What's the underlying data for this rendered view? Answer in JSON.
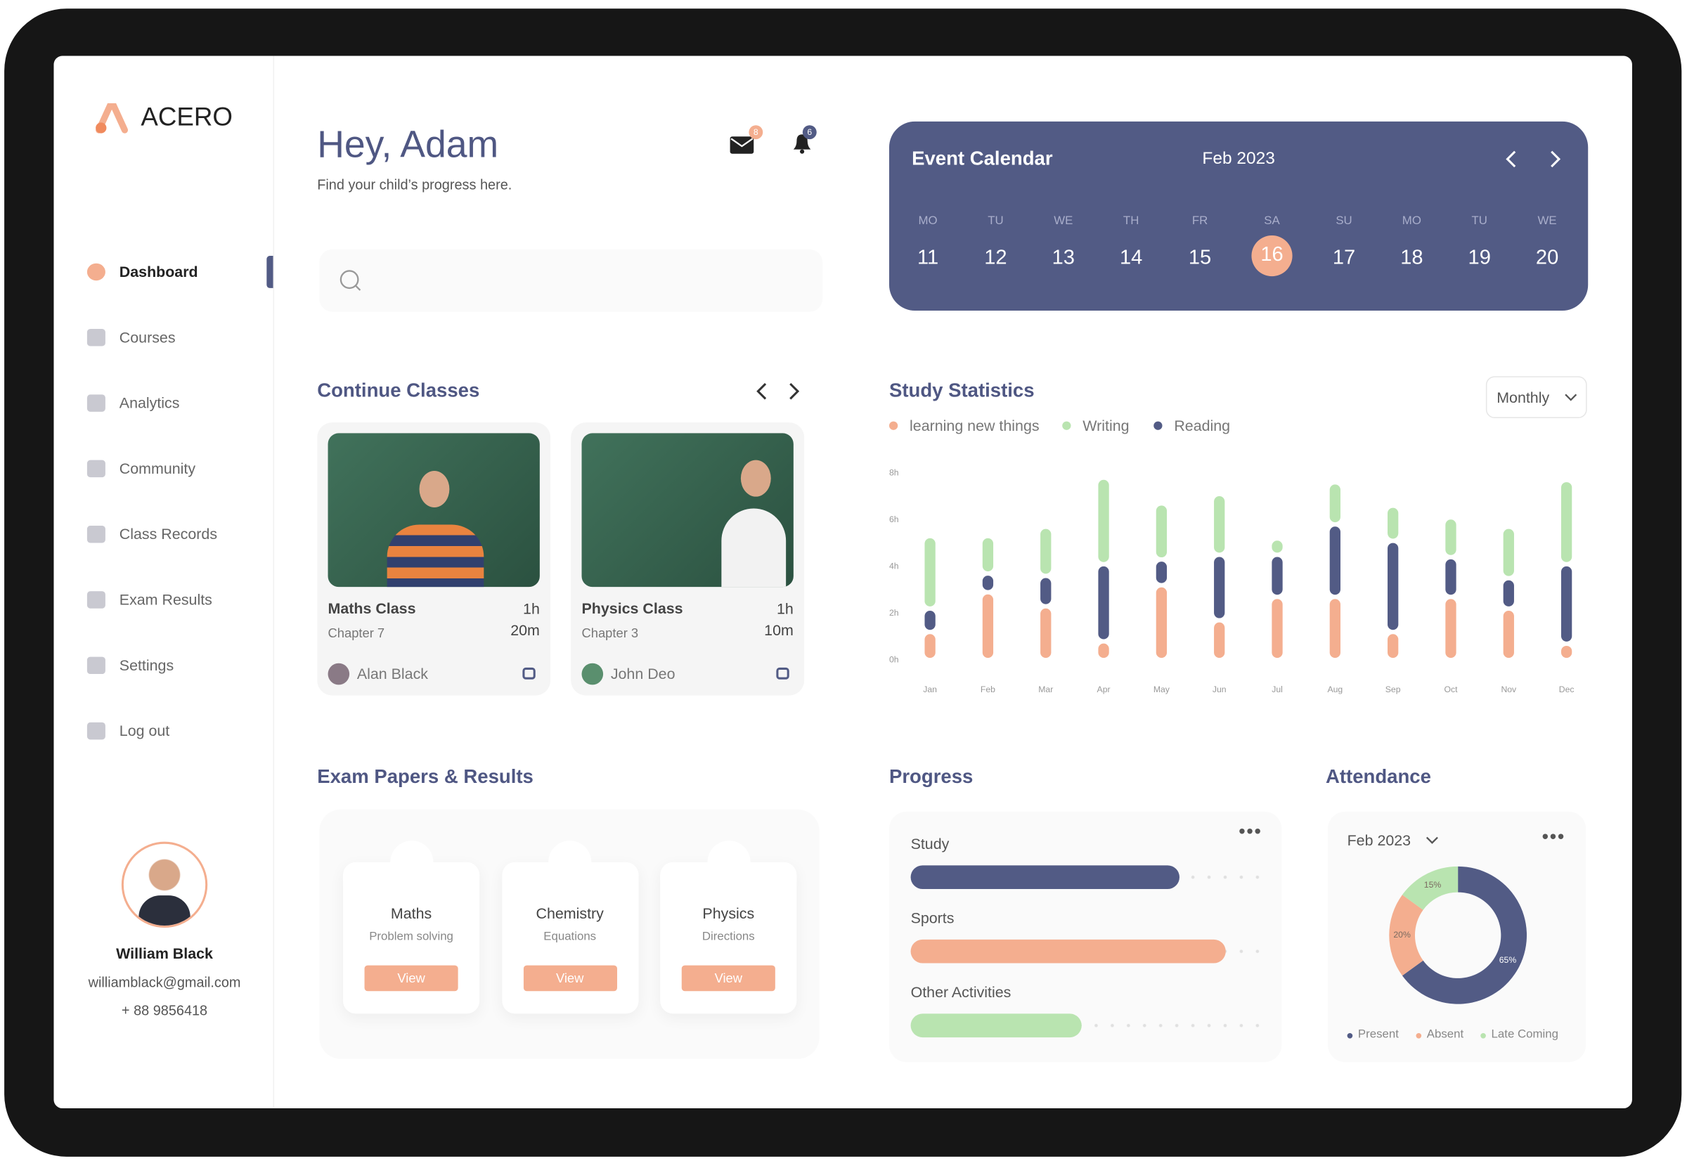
{
  "brand": "ACERO",
  "nav": [
    "Dashboard",
    "Courses",
    "Analytics",
    "Community",
    "Class Records",
    "Exam Results",
    "Settings",
    "Log out"
  ],
  "profile": {
    "name": "William Black",
    "email": "williamblack@gmail.com",
    "phone": "+ 88 9856418"
  },
  "header": {
    "greeting": "Hey, Adam",
    "subtitle": "Find your child’s progress here.",
    "mail_count": 8,
    "notification_count": 6
  },
  "calendar": {
    "title": "Event Calendar",
    "month": "Feb 2023",
    "days": [
      {
        "weekday": "MO",
        "date": 11
      },
      {
        "weekday": "TU",
        "date": 12
      },
      {
        "weekday": "WE",
        "date": 13
      },
      {
        "weekday": "TH",
        "date": 14
      },
      {
        "weekday": "FR",
        "date": 15
      },
      {
        "weekday": "SA",
        "date": 16,
        "selected": true
      },
      {
        "weekday": "SU",
        "date": 17
      },
      {
        "weekday": "MO",
        "date": 18
      },
      {
        "weekday": "TU",
        "date": 19
      },
      {
        "weekday": "WE",
        "date": 20
      }
    ]
  },
  "continue_classes": {
    "title": "Continue Classes",
    "cards": [
      {
        "name": "Maths Class",
        "chapter": "Chapter 7",
        "duration": "1h 20m",
        "teacher": "Alan Black"
      },
      {
        "name": "Physics Class",
        "chapter": "Chapter 3",
        "duration": "1h 10m",
        "teacher": "John Deo"
      }
    ]
  },
  "exam_papers": {
    "title": "Exam Papers & Results",
    "cards": [
      {
        "subject": "Maths",
        "topic": "Problem solving",
        "button": "View"
      },
      {
        "subject": "Chemistry",
        "topic": "Equations",
        "button": "View"
      },
      {
        "subject": "Physics",
        "topic": "Directions",
        "button": "View"
      }
    ]
  },
  "progress": {
    "title": "Progress",
    "items": [
      {
        "label": "Study",
        "value": 77,
        "color": "#525b85"
      },
      {
        "label": "Sports",
        "value": 90,
        "color": "#f4ae8f"
      },
      {
        "label": "Other Activities",
        "value": 49,
        "color": "#b9e4b0"
      }
    ]
  },
  "chart_data": [
    {
      "type": "bar",
      "stacked": true,
      "title": "Study Statistics",
      "period": "Monthly",
      "categories": [
        "Jan",
        "Feb",
        "Mar",
        "Apr",
        "May",
        "Jun",
        "Jul",
        "Aug",
        "Sep",
        "Oct",
        "Nov",
        "Dec"
      ],
      "series": [
        {
          "name": "learning new things",
          "color": "#f4ae8f",
          "values": [
            1.2,
            2.9,
            2.3,
            0.8,
            3.2,
            1.7,
            2.7,
            2.7,
            1.2,
            2.7,
            2.2,
            0.7
          ]
        },
        {
          "name": "Writing",
          "color": "#b9e4b0",
          "values": [
            3.1,
            1.6,
            2.1,
            3.7,
            2.4,
            2.6,
            0.7,
            1.8,
            1.5,
            1.7,
            2.2,
            3.6
          ]
        },
        {
          "name": "Reading",
          "color": "#525b85",
          "values": [
            1.0,
            0.8,
            1.3,
            3.3,
            1.1,
            2.8,
            1.8,
            3.1,
            3.9,
            1.7,
            1.3,
            3.4
          ]
        }
      ],
      "ylim": [
        0,
        8
      ],
      "yticks": [
        {
          "value": 0,
          "label": "0h"
        },
        {
          "value": 2,
          "label": "2h"
        },
        {
          "value": 4,
          "label": "4h"
        },
        {
          "value": 6,
          "label": "6h"
        },
        {
          "value": 8,
          "label": "8h"
        }
      ]
    },
    {
      "type": "pie",
      "donut": true,
      "title": "Attendance",
      "period": "Feb 2023",
      "categories": [
        "Present",
        "Absent",
        "Late Coming"
      ],
      "values": [
        65,
        20,
        15
      ],
      "value_labels": [
        "65%",
        "20%",
        "15%"
      ],
      "colors": [
        "#525b85",
        "#f4ae8f",
        "#b9e4b0"
      ]
    }
  ]
}
